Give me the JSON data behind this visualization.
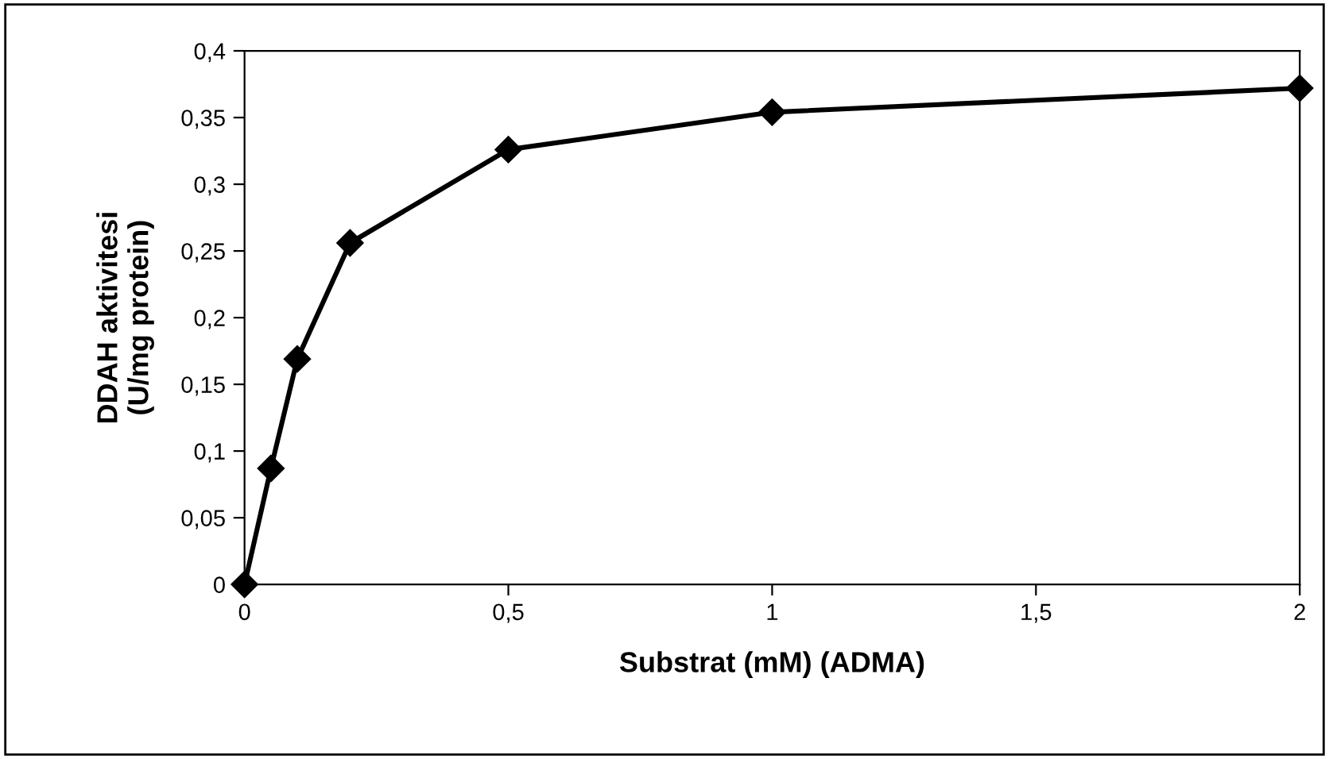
{
  "chart_data": {
    "type": "line",
    "xlabel": "Substrat (mM) (ADMA)",
    "ylabel": "DDAH aktivitesi\n(U/mg protein)",
    "x": [
      0,
      0.05,
      0.1,
      0.2,
      0.5,
      1,
      2
    ],
    "series": [
      {
        "color": "#000000",
        "values": [
          0,
          0.087,
          0.169,
          0.256,
          0.326,
          0.354,
          0.372
        ]
      }
    ],
    "marker": "diamond",
    "line_style": "solid",
    "grid": false,
    "legend": false,
    "xlim": [
      0,
      2
    ],
    "ylim": [
      0,
      0.4
    ],
    "xticks": [
      0,
      {
        "value": 0.5,
        "label": "0,5"
      },
      1,
      {
        "value": 1.5,
        "label": "1,5"
      },
      2
    ],
    "yticks": [
      0,
      {
        "value": 0.05,
        "label": "0,05"
      },
      {
        "value": 0.1,
        "label": "0,1"
      },
      {
        "value": 0.15,
        "label": "0,15"
      },
      {
        "value": 0.2,
        "label": "0,2"
      },
      {
        "value": 0.25,
        "label": "0,25"
      },
      {
        "value": 0.3,
        "label": "0,3"
      },
      {
        "value": 0.35,
        "label": "0,35"
      },
      {
        "value": 0.4,
        "label": "0,4"
      }
    ]
  }
}
